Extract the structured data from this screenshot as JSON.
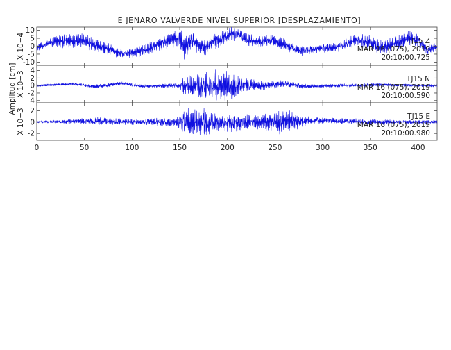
{
  "chart_data": {
    "type": "line",
    "title": "E JENARO VALVERDE NIVEL SUPERIOR [DESPLAZAMIENTO]",
    "ylabel": "Amplitud [cm]",
    "xlim": [
      0,
      420
    ],
    "x_ticks": [
      0,
      50,
      100,
      150,
      200,
      250,
      300,
      350,
      400
    ],
    "grid": false,
    "panels": [
      {
        "scale_label": "X 10−4",
        "ylim": [
          -12,
          12
        ],
        "y_ticks": [
          10,
          5,
          0,
          -5,
          -10
        ],
        "annotation": [
          "TJ15  Z",
          "MAR 16 (075), 2019",
          "20:10:00.725"
        ],
        "series": [
          {
            "color": "#1010e0",
            "envelope": [
              [
                0,
                2
              ],
              [
                10,
                3
              ],
              [
                30,
                5
              ],
              [
                55,
                5
              ],
              [
                75,
                4
              ],
              [
                90,
                3
              ],
              [
                110,
                4
              ],
              [
                130,
                4
              ],
              [
                145,
                6
              ],
              [
                152,
                8
              ],
              [
                160,
                8
              ],
              [
                170,
                6
              ],
              [
                190,
                5
              ],
              [
                205,
                5
              ],
              [
                225,
                4
              ],
              [
                250,
                4
              ],
              [
                270,
                4
              ],
              [
                290,
                3
              ],
              [
                310,
                3
              ],
              [
                330,
                4
              ],
              [
                350,
                5
              ],
              [
                370,
                5
              ],
              [
                390,
                5
              ],
              [
                410,
                4
              ],
              [
                420,
                3
              ]
            ],
            "trend": [
              [
                0,
                -1
              ],
              [
                20,
                3
              ],
              [
                45,
                4
              ],
              [
                60,
                1
              ],
              [
                75,
                -2
              ],
              [
                90,
                -5
              ],
              [
                110,
                -3
              ],
              [
                125,
                0
              ],
              [
                140,
                4
              ],
              [
                150,
                5
              ],
              [
                155,
                -1
              ],
              [
                163,
                4
              ],
              [
                175,
                -1
              ],
              [
                188,
                3
              ],
              [
                200,
                7
              ],
              [
                210,
                8
              ],
              [
                222,
                4
              ],
              [
                235,
                3
              ],
              [
                248,
                4
              ],
              [
                260,
                1
              ],
              [
                275,
                -3
              ],
              [
                290,
                -2
              ],
              [
                305,
                -1
              ],
              [
                320,
                0
              ],
              [
                335,
                4
              ],
              [
                350,
                2
              ],
              [
                360,
                -1
              ],
              [
                375,
                1
              ],
              [
                390,
                5
              ],
              [
                400,
                4
              ],
              [
                410,
                -2
              ],
              [
                420,
                0
              ]
            ]
          }
        ]
      },
      {
        "scale_label": "X 10−3",
        "ylim": [
          -4.6,
          5.4
        ],
        "y_ticks": [
          4,
          2,
          0,
          -2,
          -4
        ],
        "annotation": [
          "TJ15  N",
          "MAR 16 (075), 2019",
          "20:10:00.590"
        ],
        "series": [
          {
            "color": "#1010e0",
            "envelope": [
              [
                0,
                0.3
              ],
              [
                30,
                0.4
              ],
              [
                60,
                0.6
              ],
              [
                90,
                0.5
              ],
              [
                120,
                0.5
              ],
              [
                140,
                0.6
              ],
              [
                150,
                0.8
              ],
              [
                154,
                3.2
              ],
              [
                170,
                3.8
              ],
              [
                180,
                4.5
              ],
              [
                195,
                4.3
              ],
              [
                205,
                3.9
              ],
              [
                215,
                2.2
              ],
              [
                230,
                1.5
              ],
              [
                250,
                1.2
              ],
              [
                270,
                0.8
              ],
              [
                300,
                0.5
              ],
              [
                330,
                0.5
              ],
              [
                360,
                0.5
              ],
              [
                390,
                0.4
              ],
              [
                420,
                0.4
              ]
            ],
            "trend": [
              [
                0,
                0
              ],
              [
                40,
                0.4
              ],
              [
                60,
                -0.3
              ],
              [
                90,
                0.6
              ],
              [
                110,
                -0.2
              ],
              [
                150,
                0
              ],
              [
                200,
                0
              ],
              [
                240,
                0
              ],
              [
                260,
                0.5
              ],
              [
                280,
                -0.2
              ],
              [
                320,
                0
              ],
              [
                360,
                0.2
              ],
              [
                400,
                0
              ],
              [
                420,
                0
              ]
            ]
          }
        ]
      },
      {
        "scale_label": "X 10−3",
        "ylim": [
          -3.2,
          3.4
        ],
        "y_ticks": [
          2,
          0,
          -2
        ],
        "annotation": [
          "TJ15  E",
          "MAR 16 (075), 2019",
          "20:10:00.980"
        ],
        "series": [
          {
            "color": "#1010e0",
            "envelope": [
              [
                0,
                0.2
              ],
              [
                30,
                0.4
              ],
              [
                50,
                0.6
              ],
              [
                70,
                0.8
              ],
              [
                90,
                0.6
              ],
              [
                110,
                0.5
              ],
              [
                130,
                0.9
              ],
              [
                145,
                0.8
              ],
              [
                152,
                2.4
              ],
              [
                165,
                2.6
              ],
              [
                178,
                2.8
              ],
              [
                185,
                1.8
              ],
              [
                195,
                1.5
              ],
              [
                205,
                1.8
              ],
              [
                215,
                1.6
              ],
              [
                230,
                1.4
              ],
              [
                245,
                1.7
              ],
              [
                255,
                2.3
              ],
              [
                265,
                2.0
              ],
              [
                272,
                1.8
              ],
              [
                278,
                1.0
              ],
              [
                290,
                0.7
              ],
              [
                310,
                0.5
              ],
              [
                340,
                0.6
              ],
              [
                370,
                0.5
              ],
              [
                400,
                0.4
              ],
              [
                420,
                0.3
              ]
            ],
            "trend": [
              [
                0,
                0
              ],
              [
                60,
                0.2
              ],
              [
                100,
                0
              ],
              [
                150,
                0
              ],
              [
                200,
                -0.2
              ],
              [
                250,
                0
              ],
              [
                300,
                0.3
              ],
              [
                350,
                0
              ],
              [
                420,
                0
              ]
            ]
          }
        ]
      }
    ]
  }
}
